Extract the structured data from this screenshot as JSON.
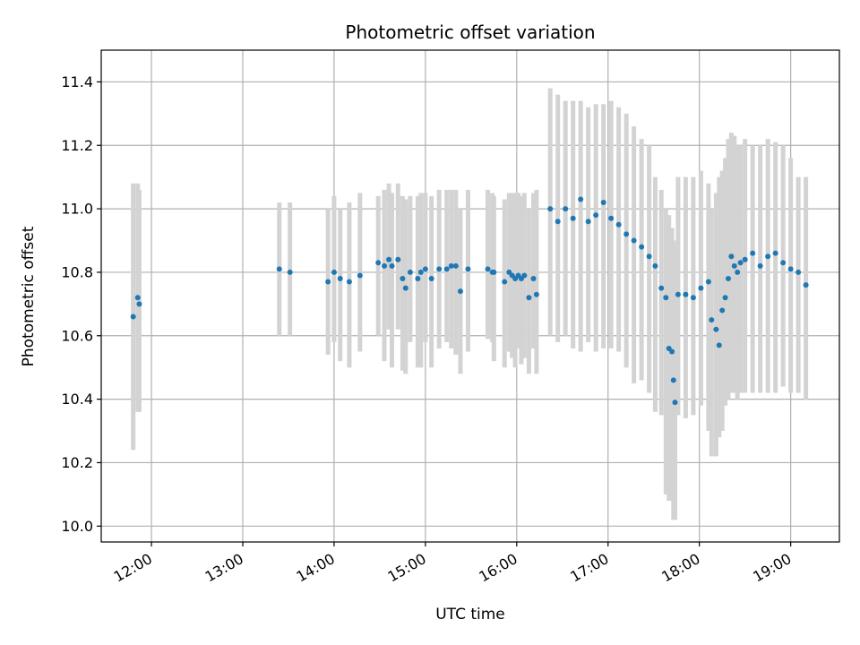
{
  "chart_data": {
    "type": "scatter",
    "title": "Photometric offset variation",
    "xlabel": "UTC time",
    "ylabel": "Photometric offset",
    "xlim": [
      "11:27",
      "19:32"
    ],
    "ylim": [
      9.95,
      11.5
    ],
    "x_ticks": [
      "12:00",
      "13:00",
      "14:00",
      "15:00",
      "16:00",
      "17:00",
      "18:00",
      "19:00"
    ],
    "y_ticks": [
      10.0,
      10.2,
      10.4,
      10.6,
      10.8,
      11.0,
      11.2,
      11.4
    ],
    "y_tick_labels": [
      "10.0",
      "10.2",
      "10.4",
      "10.6",
      "10.8",
      "11.0",
      "11.2",
      "11.4"
    ],
    "grid": true,
    "colors": {
      "points": "#1f77b4",
      "error_bars": "#d3d3d3",
      "grid": "#b0b0b0"
    },
    "series": [
      {
        "x": [
          "11:48",
          "11:51",
          "11:52",
          "13:24",
          "13:31",
          "13:56",
          "14:00",
          "14:04",
          "14:10",
          "14:17",
          "14:29",
          "14:33",
          "14:36",
          "14:38",
          "14:42",
          "14:45",
          "14:47",
          "14:50",
          "14:55",
          "14:57",
          "15:00",
          "15:04",
          "15:09",
          "15:14",
          "15:17",
          "15:20",
          "15:23",
          "15:28",
          "15:41",
          "15:44",
          "15:45",
          "15:52",
          "15:55",
          "15:57",
          "15:59",
          "16:01",
          "16:03",
          "16:05",
          "16:08",
          "16:11",
          "16:13",
          "16:22",
          "16:27",
          "16:32",
          "16:37",
          "16:42",
          "16:47",
          "16:52",
          "16:57",
          "17:02",
          "17:07",
          "17:12",
          "17:17",
          "17:22",
          "17:27",
          "17:31",
          "17:35",
          "17:38",
          "17:40",
          "17:42",
          "17:43",
          "17:44",
          "17:46",
          "17:51",
          "17:56",
          "18:01",
          "18:06",
          "18:08",
          "18:11",
          "18:13",
          "18:15",
          "18:17",
          "18:19",
          "18:21",
          "18:23",
          "18:25",
          "18:27",
          "18:30",
          "18:35",
          "18:40",
          "18:45",
          "18:50",
          "18:55",
          "19:00",
          "19:05",
          "19:10"
        ],
        "y": [
          10.66,
          10.72,
          10.7,
          10.81,
          10.8,
          10.77,
          10.8,
          10.78,
          10.77,
          10.79,
          10.83,
          10.82,
          10.84,
          10.82,
          10.84,
          10.78,
          10.75,
          10.8,
          10.78,
          10.8,
          10.81,
          10.78,
          10.81,
          10.81,
          10.82,
          10.82,
          10.74,
          10.81,
          10.81,
          10.8,
          10.8,
          10.77,
          10.8,
          10.79,
          10.78,
          10.79,
          10.78,
          10.79,
          10.72,
          10.78,
          10.73,
          11.0,
          10.96,
          11.0,
          10.97,
          11.03,
          10.96,
          10.98,
          11.02,
          10.97,
          10.95,
          10.92,
          10.9,
          10.88,
          10.85,
          10.82,
          10.75,
          10.72,
          10.56,
          10.55,
          10.46,
          10.39,
          10.73,
          10.73,
          10.72,
          10.75,
          10.77,
          10.65,
          10.62,
          10.57,
          10.68,
          10.72,
          10.78,
          10.85,
          10.82,
          10.8,
          10.83,
          10.84,
          10.86,
          10.82,
          10.85,
          10.86,
          10.83,
          10.81,
          10.8,
          10.76
        ],
        "err_low": [
          10.24,
          10.36,
          10.36,
          10.6,
          10.6,
          10.54,
          10.58,
          10.52,
          10.5,
          10.55,
          10.6,
          10.52,
          10.62,
          10.5,
          10.62,
          10.49,
          10.48,
          10.58,
          10.5,
          10.5,
          10.58,
          10.5,
          10.56,
          10.58,
          10.56,
          10.54,
          10.48,
          10.55,
          10.59,
          10.58,
          10.52,
          10.5,
          10.55,
          10.53,
          10.5,
          10.56,
          10.51,
          10.53,
          10.48,
          10.56,
          10.48,
          10.6,
          10.58,
          10.6,
          10.56,
          10.55,
          10.58,
          10.55,
          10.56,
          10.56,
          10.55,
          10.5,
          10.45,
          10.46,
          10.42,
          10.36,
          10.35,
          10.1,
          10.08,
          10.08,
          10.02,
          10.02,
          10.35,
          10.34,
          10.35,
          10.38,
          10.3,
          10.22,
          10.22,
          10.28,
          10.3,
          10.38,
          10.4,
          10.42,
          10.42,
          10.4,
          10.42,
          10.42,
          10.42,
          10.42,
          10.42,
          10.42,
          10.44,
          10.42,
          10.42,
          10.4
        ],
        "err_high": [
          11.08,
          11.08,
          11.06,
          11.02,
          11.02,
          11.0,
          11.04,
          11.0,
          11.02,
          11.05,
          11.04,
          11.06,
          11.08,
          11.05,
          11.08,
          11.04,
          11.03,
          11.04,
          11.04,
          11.05,
          11.05,
          11.04,
          11.06,
          11.06,
          11.06,
          11.06,
          11.0,
          11.06,
          11.06,
          11.05,
          11.04,
          11.03,
          11.05,
          11.05,
          11.05,
          11.05,
          11.04,
          11.05,
          11.0,
          11.05,
          11.06,
          11.38,
          11.36,
          11.34,
          11.34,
          11.34,
          11.32,
          11.33,
          11.33,
          11.34,
          11.32,
          11.3,
          11.26,
          11.22,
          11.2,
          11.1,
          11.06,
          11.0,
          10.98,
          10.94,
          10.9,
          10.88,
          11.1,
          11.1,
          11.1,
          11.12,
          11.08,
          11.0,
          11.05,
          11.1,
          11.12,
          11.16,
          11.22,
          11.24,
          11.23,
          11.2,
          11.2,
          11.22,
          11.2,
          11.2,
          11.22,
          11.21,
          11.2,
          11.16,
          11.1,
          11.1
        ]
      }
    ]
  }
}
